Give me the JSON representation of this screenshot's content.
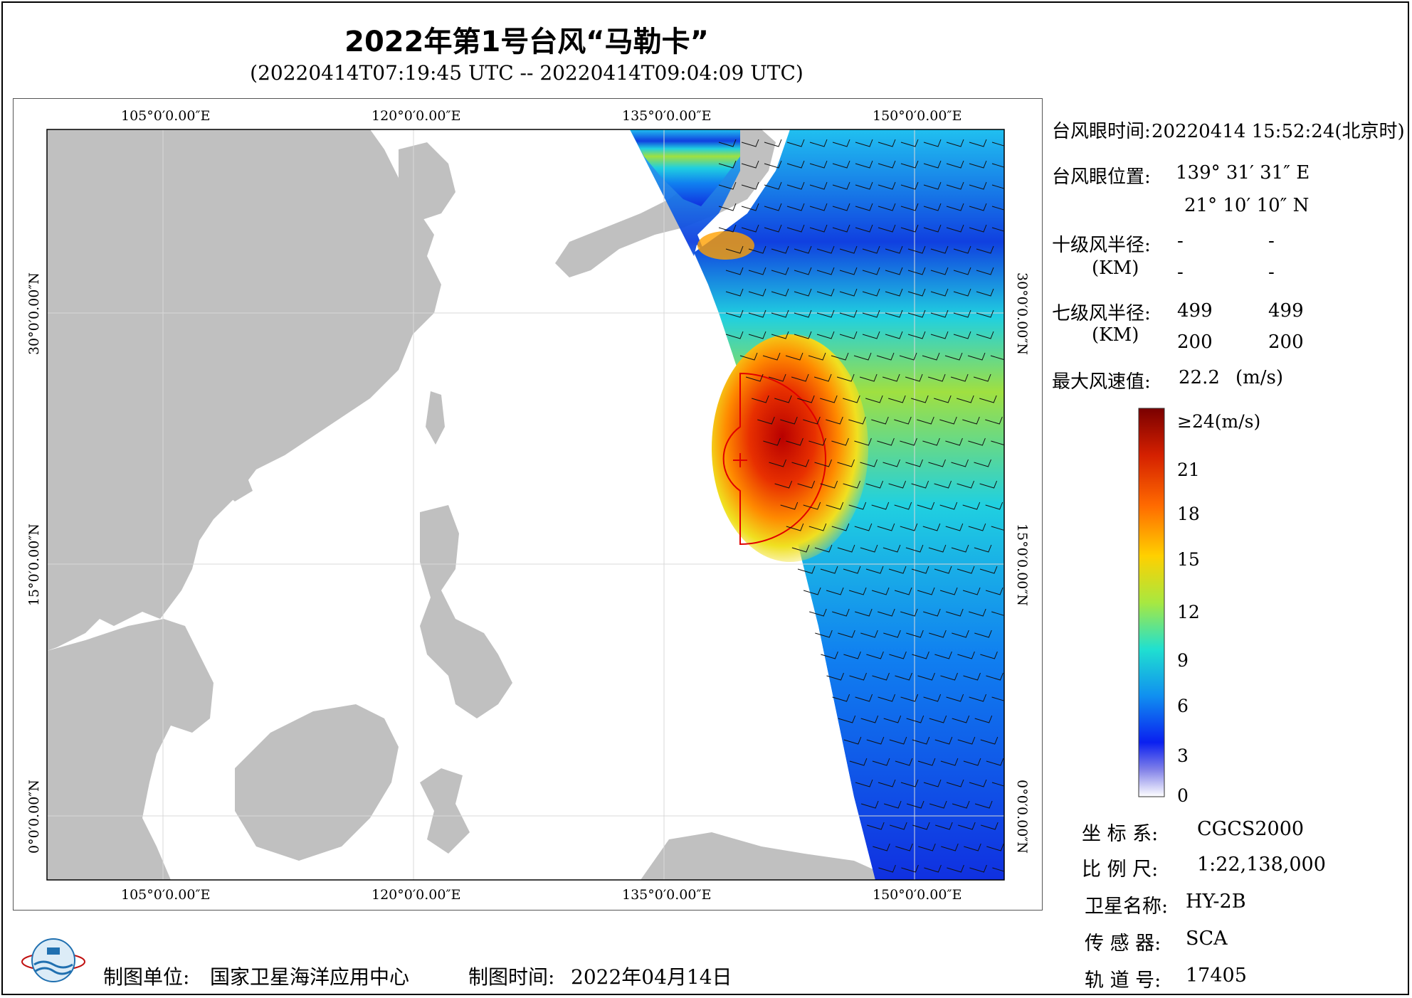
{
  "title": "2022年第1号台风“马勒卡”",
  "subtitle": "(20220414T07:19:45 UTC -- 20220414T09:04:09 UTC)",
  "map": {
    "lon_labels": [
      "105°0′0.00″E",
      "120°0′0.00″E",
      "135°0′0.00″E",
      "150°0′0.00″E"
    ],
    "lat_labels": [
      "30°0′0.00″N",
      "15°0′0.00″N",
      "0°0′0.00″N"
    ],
    "land_color": "#c0c0c0",
    "ocean_color": "#ffffff",
    "typhoon_marker_color": "#e00000"
  },
  "info": {
    "eye_time_label": "台风眼时间:",
    "eye_time_value": "20220414 15:52:24(北京时)",
    "eye_pos_label": "台风眼位置:",
    "eye_lon": "139° 31′ 31″ E",
    "eye_lat": "21° 10′ 10″ N",
    "r10_label": "十级风半径:",
    "r10_unit": "(KM)",
    "r10_values": [
      "-",
      "-",
      "-",
      "-"
    ],
    "r7_label": "七级风半径:",
    "r7_unit": "(KM)",
    "r7_values": [
      "499",
      "499",
      "200",
      "200"
    ],
    "max_wind_label": "最大风速值:",
    "max_wind_value": "22.2",
    "max_wind_unit": "(m/s)"
  },
  "colorbar": {
    "labels": [
      "≥24(m/s)",
      "21",
      "18",
      "15",
      "12",
      "9",
      "6",
      "3",
      "0"
    ],
    "colors": [
      "#7a0000",
      "#d42000",
      "#ff6a00",
      "#ffd000",
      "#a8e840",
      "#20e0d0",
      "#1090f0",
      "#0a20f0",
      "#ffffff"
    ]
  },
  "meta": {
    "crs_label": "坐 标 系:",
    "crs_value": "CGCS2000",
    "scale_label": "比 例 尺:",
    "scale_value": "1:22,138,000",
    "satellite_label": "卫星名称:",
    "satellite_value": "HY-2B",
    "sensor_label": "传 感 器:",
    "sensor_value": "SCA",
    "orbit_label": "轨 道 号:",
    "orbit_value": "17405"
  },
  "footer": {
    "unit_label": "制图单位:",
    "unit_value": "国家卫星海洋应用中心",
    "time_label": "制图时间:",
    "time_value": "2022年04月14日"
  }
}
